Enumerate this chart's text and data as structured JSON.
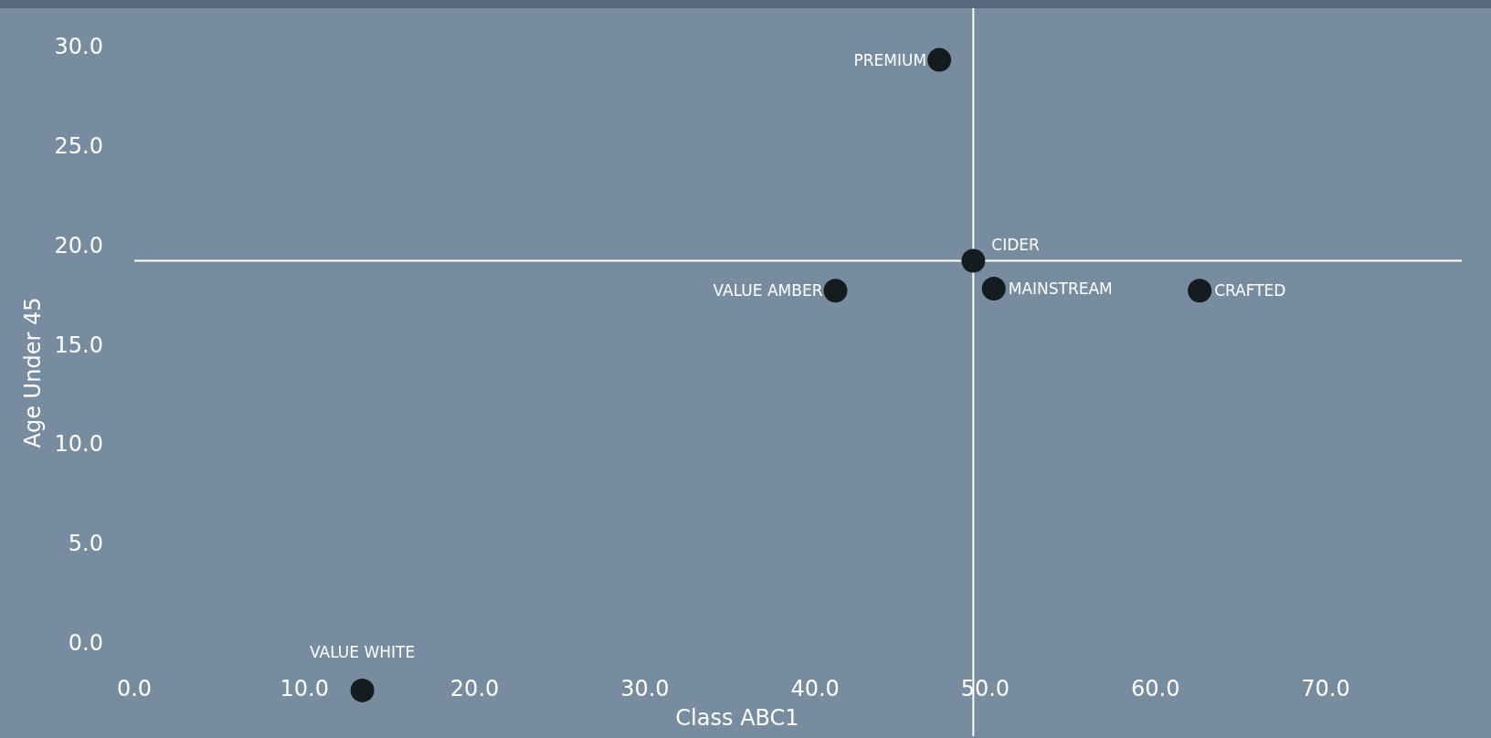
{
  "chart_data": {
    "type": "scatter",
    "xlabel": "Class ABC1",
    "ylabel": "Age Under 45",
    "x": [
      47.3,
      49.3,
      50.5,
      62.6,
      41.2,
      13.4
    ],
    "values": [
      29.3,
      19.2,
      17.8,
      17.7,
      17.7,
      -2.4
    ],
    "color": "#151c20",
    "marker": "circle",
    "xlim": [
      0,
      78
    ],
    "ylim": [
      -4.7,
      31.9
    ],
    "xticks": [
      {
        "value": 0,
        "label": "0.0"
      },
      {
        "value": 10,
        "label": "10.0"
      },
      {
        "value": 20,
        "label": "20.0"
      },
      {
        "value": 30,
        "label": "30.0"
      },
      {
        "value": 40,
        "label": "40.0"
      },
      {
        "value": 50,
        "label": "50.0"
      },
      {
        "value": 60,
        "label": "60.0"
      },
      {
        "value": 70,
        "label": "70.0"
      }
    ],
    "yticks": [
      {
        "value": 0,
        "label": "0.0"
      },
      {
        "value": 5,
        "label": "5.0"
      },
      {
        "value": 10,
        "label": "10.0"
      },
      {
        "value": 15,
        "label": "15.0"
      },
      {
        "value": 20,
        "label": "20.0"
      },
      {
        "value": 25,
        "label": "25.0"
      },
      {
        "value": 30,
        "label": "30.0"
      }
    ],
    "ref_lines": [
      {
        "axis": "x",
        "value": 49.3,
        "color": "#ffffff"
      },
      {
        "axis": "y",
        "value": 19.2,
        "color": "#ffffff"
      }
    ],
    "annotations": [
      {
        "text": "PREMIUM",
        "x": 47.3,
        "y": 29.3
      },
      {
        "text": "CIDER",
        "x": 49.3,
        "y": 19.2
      },
      {
        "text": "MAINSTREAM",
        "x": 50.5,
        "y": 17.8
      },
      {
        "text": "CRAFTED",
        "x": 62.6,
        "y": 17.7
      },
      {
        "text": "VALUE AMBER",
        "x": 41.2,
        "y": 17.7
      },
      {
        "text": "VALUE WHITE",
        "x": 13.4,
        "y": -2.4
      }
    ],
    "grid": false
  }
}
